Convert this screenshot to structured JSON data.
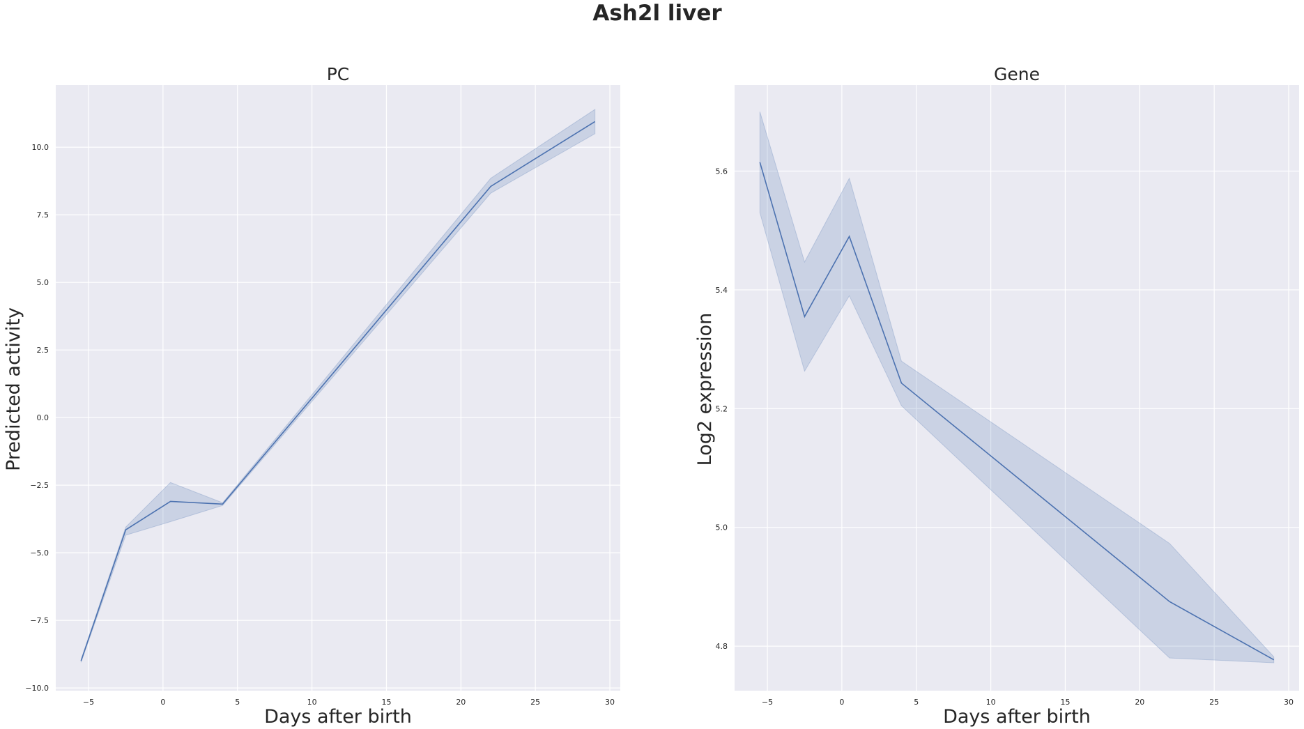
{
  "figure": {
    "title": "Ash2l liver"
  },
  "chart_data": [
    {
      "type": "line",
      "title": "PC",
      "xlabel": "Days after birth",
      "ylabel": "Predicted activity",
      "xlim": [
        -7.2,
        30.7
      ],
      "ylim": [
        -10.1,
        12.3
      ],
      "xticks": [
        -5,
        0,
        5,
        10,
        15,
        20,
        25,
        30
      ],
      "xtick_labels": [
        "−5",
        "0",
        "5",
        "10",
        "15",
        "20",
        "25",
        "30"
      ],
      "yticks": [
        -10,
        -7.5,
        -5,
        -2.5,
        0,
        2.5,
        5,
        7.5,
        10
      ],
      "ytick_labels": [
        "−10.0",
        "−7.5",
        "−5.0",
        "−2.5",
        "0.0",
        "2.5",
        "5.0",
        "7.5",
        "10.0"
      ],
      "grid": true,
      "series_color": "#4c72b0",
      "x": [
        -5.5,
        -2.5,
        0.5,
        4,
        22,
        29
      ],
      "y": [
        -9.0,
        -4.15,
        -3.1,
        -3.2,
        8.55,
        10.95
      ],
      "ci_low": [
        -9.05,
        -4.35,
        -3.85,
        -3.25,
        8.3,
        10.5
      ],
      "ci_high": [
        -8.95,
        -4.05,
        -2.4,
        -3.15,
        8.85,
        11.4
      ]
    },
    {
      "type": "line",
      "title": "Gene",
      "xlabel": "Days after birth",
      "ylabel": "Log2 expression",
      "xlim": [
        -7.2,
        30.7
      ],
      "ylim": [
        4.725,
        5.745
      ],
      "xticks": [
        -5,
        0,
        5,
        10,
        15,
        20,
        25,
        30
      ],
      "xtick_labels": [
        "−5",
        "0",
        "5",
        "10",
        "15",
        "20",
        "25",
        "30"
      ],
      "yticks": [
        4.8,
        5.0,
        5.2,
        5.4,
        5.6
      ],
      "ytick_labels": [
        "4.8",
        "5.0",
        "5.2",
        "5.4",
        "5.6"
      ],
      "grid": true,
      "series_color": "#4c72b0",
      "x": [
        -5.5,
        -2.5,
        0.5,
        4,
        22,
        29
      ],
      "y": [
        5.615,
        5.355,
        5.49,
        5.243,
        4.875,
        4.777
      ],
      "ci_low": [
        5.53,
        5.263,
        5.39,
        5.205,
        4.78,
        4.772
      ],
      "ci_high": [
        5.7,
        5.447,
        5.588,
        5.28,
        4.973,
        4.782
      ]
    }
  ]
}
